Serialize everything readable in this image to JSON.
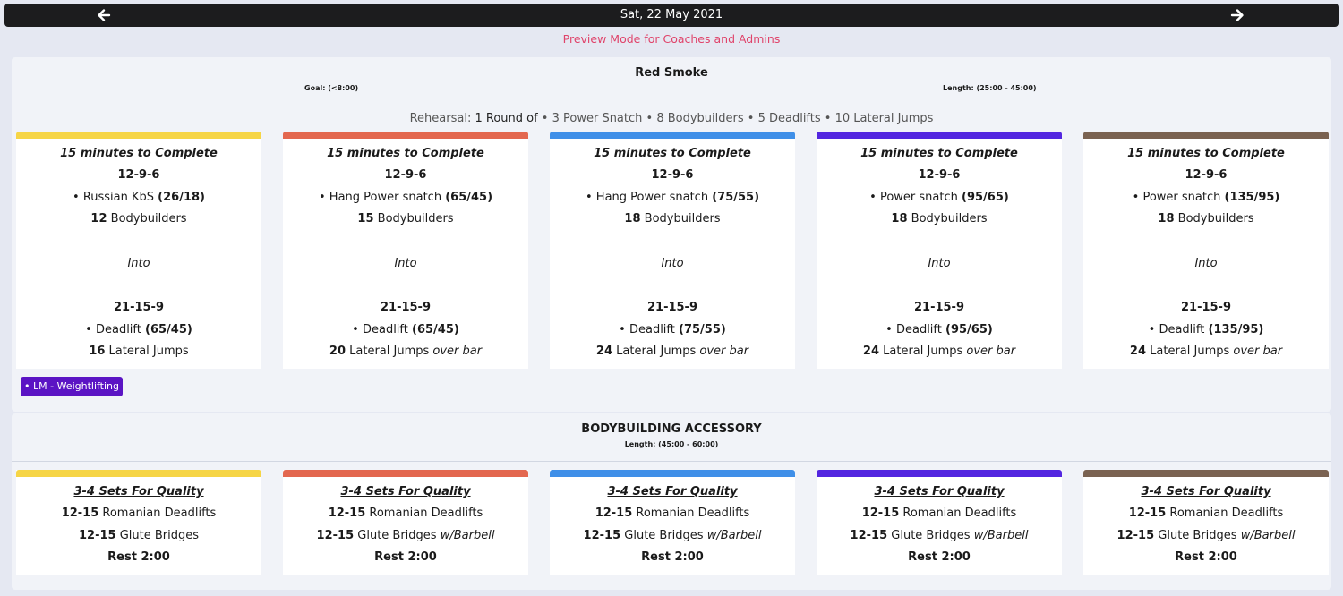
{
  "nav": {
    "date": "Sat, 22 May 2021",
    "prev_icon": "arrow-left-icon",
    "next_icon": "arrow-right-icon"
  },
  "preview_text": "Preview Mode for Coaches and Admins",
  "colors": {
    "yellow": "#f6d546",
    "orange": "#e3674f",
    "blue": "#3f8fe8",
    "purple": "#5326e0",
    "brown": "#7a6251",
    "tag": "#5b14c4",
    "preview": "#e0436a"
  },
  "workout": {
    "title": "Red Smoke",
    "goal": "Goal: (<8:00)",
    "length": "Length: (25:00 - 45:00)",
    "rehearsal": {
      "prefix": "Rehearsal: ",
      "round": "1 Round of",
      "items": [
        " • 3 Power Snatch",
        " • 8 Bodybuilders",
        " • 5 Deadlifts",
        " • 10 Lateral Jumps"
      ]
    },
    "tag": "• LM - Weightlifting",
    "cards": [
      {
        "heading": "15 minutes to Complete",
        "scheme1": "12-9-6",
        "lift1": "Russian KbS",
        "load1": "(26/18)",
        "reps_a": "12",
        "move_a": "Bodybuilders",
        "into": "Into",
        "scheme2": "21-15-9",
        "lift2": "Deadlift",
        "load2": "(65/45)",
        "reps_b": "16",
        "move_b": "Lateral Jumps",
        "note_b": ""
      },
      {
        "heading": "15 minutes to Complete",
        "scheme1": "12-9-6",
        "lift1": "Hang Power snatch",
        "load1": "(65/45)",
        "reps_a": "15",
        "move_a": "Bodybuilders",
        "into": "Into",
        "scheme2": "21-15-9",
        "lift2": "Deadlift",
        "load2": "(65/45)",
        "reps_b": "20",
        "move_b": "Lateral Jumps",
        "note_b": "over bar"
      },
      {
        "heading": "15 minutes to Complete",
        "scheme1": "12-9-6",
        "lift1": "Hang Power snatch",
        "load1": "(75/55)",
        "reps_a": "18",
        "move_a": "Bodybuilders",
        "into": "Into",
        "scheme2": "21-15-9",
        "lift2": "Deadlift",
        "load2": "(75/55)",
        "reps_b": "24",
        "move_b": "Lateral Jumps",
        "note_b": "over bar"
      },
      {
        "heading": "15 minutes to Complete",
        "scheme1": "12-9-6",
        "lift1": "Power snatch",
        "load1": "(95/65)",
        "reps_a": "18",
        "move_a": "Bodybuilders",
        "into": "Into",
        "scheme2": "21-15-9",
        "lift2": "Deadlift",
        "load2": "(95/65)",
        "reps_b": "24",
        "move_b": "Lateral Jumps",
        "note_b": "over bar"
      },
      {
        "heading": "15 minutes to Complete",
        "scheme1": "12-9-6",
        "lift1": "Power snatch",
        "load1": "(135/95)",
        "reps_a": "18",
        "move_a": "Bodybuilders",
        "into": "Into",
        "scheme2": "21-15-9",
        "lift2": "Deadlift",
        "load2": "(135/95)",
        "reps_b": "24",
        "move_b": "Lateral Jumps",
        "note_b": "over bar"
      }
    ]
  },
  "accessory": {
    "title": "BODYBUILDING ACCESSORY",
    "length": "Length: (45:00 - 60:00)",
    "cards": [
      {
        "heading": "3-4 Sets For Quality",
        "reps1": "12-15",
        "move1": "Romanian Deadlifts",
        "reps2": "12-15",
        "move2": "Glute Bridges",
        "note2": "",
        "rest": "Rest 2:00"
      },
      {
        "heading": "3-4 Sets For Quality",
        "reps1": "12-15",
        "move1": "Romanian Deadlifts",
        "reps2": "12-15",
        "move2": "Glute Bridges",
        "note2": "w/Barbell",
        "rest": "Rest 2:00"
      },
      {
        "heading": "3-4 Sets For Quality",
        "reps1": "12-15",
        "move1": "Romanian Deadlifts",
        "reps2": "12-15",
        "move2": "Glute Bridges",
        "note2": "w/Barbell",
        "rest": "Rest 2:00"
      },
      {
        "heading": "3-4 Sets For Quality",
        "reps1": "12-15",
        "move1": "Romanian Deadlifts",
        "reps2": "12-15",
        "move2": "Glute Bridges",
        "note2": "w/Barbell",
        "rest": "Rest 2:00"
      },
      {
        "heading": "3-4 Sets For Quality",
        "reps1": "12-15",
        "move1": "Romanian Deadlifts",
        "reps2": "12-15",
        "move2": "Glute Bridges",
        "note2": "w/Barbell",
        "rest": "Rest 2:00"
      }
    ]
  }
}
